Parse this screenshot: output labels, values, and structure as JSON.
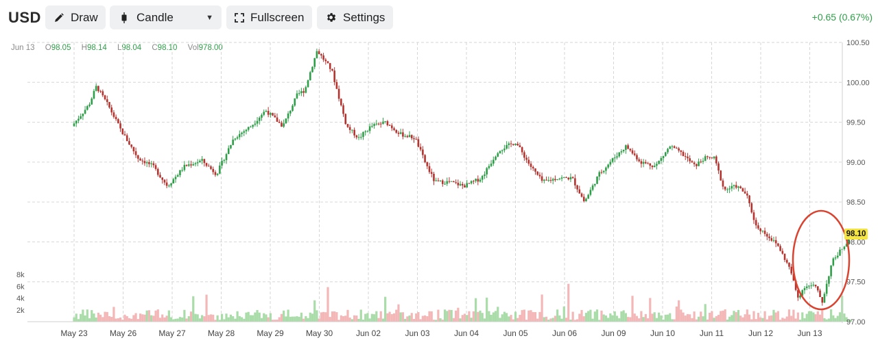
{
  "toolbar": {
    "symbol": "USD",
    "draw_label": "Draw",
    "chart_type_label": "Candle",
    "fullscreen_label": "Fullscreen",
    "settings_label": "Settings",
    "change_text": "+0.65 (0.67%)"
  },
  "ohlc": {
    "date": "Jun 13",
    "o_label": "O",
    "o_value": "98.05",
    "h_label": "H",
    "h_value": "98.14",
    "l_label": "L",
    "l_value": "98.04",
    "c_label": "C",
    "c_value": "98.10",
    "vol_label": "Vol",
    "vol_value": "978.00"
  },
  "last_price_label": "98.10",
  "colors": {
    "up": "#2e9f48",
    "down": "#b5332e",
    "vol_up": "#a9dca9",
    "vol_down": "#f3b7b7",
    "highlight": "#d9432f",
    "last_price_bg": "#f4e542"
  },
  "icons": {
    "draw": "pencil-icon",
    "chart_type": "candle-icon",
    "fullscreen": "fullscreen-icon",
    "settings": "gear-icon"
  },
  "chart_data": {
    "type": "candlestick",
    "title": "",
    "price_axis": {
      "ticks": [
        97.0,
        97.5,
        98.0,
        98.5,
        99.0,
        99.5,
        100.0,
        100.5
      ],
      "tick_labels": [
        "97.00",
        "97.50",
        "98.00",
        "98.50",
        "99.00",
        "99.50",
        "100.00",
        "100.50"
      ],
      "range": [
        97.0,
        100.5
      ]
    },
    "volume_axis": {
      "ticks": [
        2000,
        4000,
        6000,
        8000
      ],
      "tick_labels": [
        "2k",
        "4k",
        "6k",
        "8k"
      ]
    },
    "x_labels": [
      "May 23",
      "May 26",
      "May 27",
      "May 28",
      "May 29",
      "May 30",
      "Jun 02",
      "Jun 03",
      "Jun 04",
      "Jun 05",
      "Jun 06",
      "Jun 09",
      "Jun 10",
      "Jun 11",
      "Jun 12",
      "Jun 13"
    ],
    "series": [
      {
        "name": "",
        "anchors": [
          [
            0.0,
            99.45
          ],
          [
            0.35,
            99.72
          ],
          [
            0.5,
            99.95
          ],
          [
            0.75,
            99.7
          ],
          [
            1.0,
            99.4
          ],
          [
            1.35,
            99.05
          ],
          [
            1.65,
            98.95
          ],
          [
            1.95,
            98.7
          ],
          [
            2.3,
            98.95
          ],
          [
            2.65,
            99.02
          ],
          [
            2.95,
            98.85
          ],
          [
            3.3,
            99.3
          ],
          [
            3.65,
            99.45
          ],
          [
            3.95,
            99.65
          ],
          [
            4.3,
            99.45
          ],
          [
            4.6,
            99.85
          ],
          [
            4.75,
            99.9
          ],
          [
            4.82,
            100.05
          ],
          [
            5.0,
            100.4
          ],
          [
            5.3,
            100.15
          ],
          [
            5.45,
            99.8
          ],
          [
            5.6,
            99.45
          ],
          [
            5.85,
            99.3
          ],
          [
            6.1,
            99.45
          ],
          [
            6.4,
            99.5
          ],
          [
            6.7,
            99.35
          ],
          [
            7.0,
            99.3
          ],
          [
            7.2,
            99.0
          ],
          [
            7.4,
            98.75
          ],
          [
            7.7,
            98.75
          ],
          [
            8.0,
            98.7
          ],
          [
            8.35,
            98.8
          ],
          [
            8.7,
            99.15
          ],
          [
            9.05,
            99.25
          ],
          [
            9.35,
            98.95
          ],
          [
            9.6,
            98.75
          ],
          [
            9.9,
            98.8
          ],
          [
            10.2,
            98.8
          ],
          [
            10.45,
            98.5
          ],
          [
            10.75,
            98.85
          ],
          [
            11.05,
            99.05
          ],
          [
            11.3,
            99.2
          ],
          [
            11.6,
            99.0
          ],
          [
            11.9,
            98.95
          ],
          [
            12.2,
            99.2
          ],
          [
            12.45,
            99.1
          ],
          [
            12.7,
            98.95
          ],
          [
            12.9,
            99.05
          ],
          [
            13.1,
            99.05
          ],
          [
            13.3,
            98.65
          ],
          [
            13.55,
            98.7
          ],
          [
            13.75,
            98.6
          ],
          [
            13.95,
            98.2
          ],
          [
            14.15,
            98.1
          ],
          [
            14.4,
            97.95
          ],
          [
            14.65,
            97.65
          ],
          [
            14.8,
            97.3
          ],
          [
            14.95,
            97.45
          ],
          [
            15.15,
            97.45
          ],
          [
            15.3,
            97.25
          ],
          [
            15.5,
            97.75
          ],
          [
            15.8,
            98.0
          ],
          [
            15.88,
            98.1
          ]
        ],
        "last": {
          "o": 98.05,
          "h": 98.14,
          "l": 98.04,
          "c": 98.1,
          "v": 978
        }
      }
    ],
    "grid": true,
    "annotations": [
      {
        "type": "ellipse",
        "color": "#d9432f",
        "around": "Jun 13"
      }
    ]
  }
}
